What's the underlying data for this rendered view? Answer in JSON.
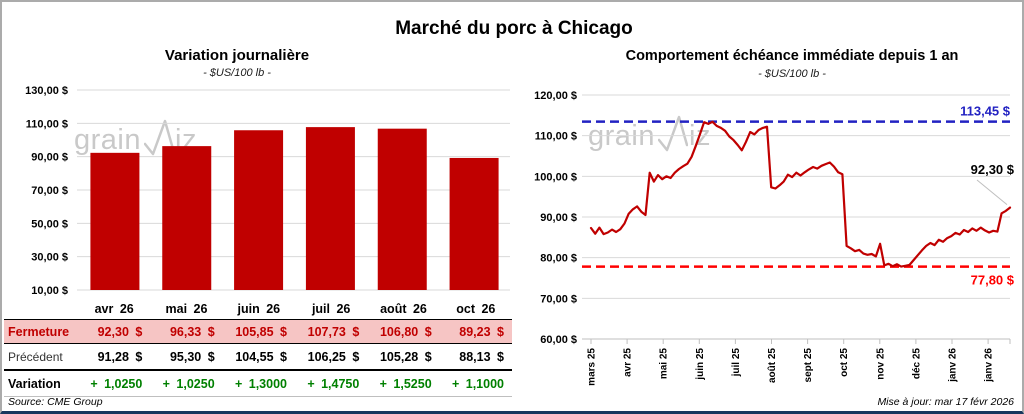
{
  "page": {
    "title": "Marché du porc à Chicago",
    "source": "Source: CME Group",
    "updated": "Mise à jour: mar 17 févr 2026",
    "watermark": {
      "pre": "grain",
      "post": "iz"
    }
  },
  "colors": {
    "series_red": "#C00000",
    "bright_red": "#FF0000",
    "blue": "#2222C2",
    "green": "#008000",
    "pink_row": "#F6C5C4",
    "grid": "#D9D9D9",
    "axis": "#BFBFBF",
    "watermark": "#C9C9C9",
    "border_navy": "#17375E",
    "border_gray": "#ABABAB"
  },
  "chart_data": [
    {
      "type": "bar",
      "title": "Variation journalière",
      "subtitle": "- $US/100 lb -",
      "categories": [
        "avr 26",
        "mai 26",
        "juin 26",
        "juil 26",
        "août 26",
        "oct 26"
      ],
      "values": [
        92.3,
        96.33,
        105.85,
        107.73,
        106.8,
        89.23
      ],
      "ylim": [
        10,
        130
      ],
      "yticks": [
        130,
        110,
        90,
        70,
        50,
        30,
        10
      ],
      "ytick_labels": [
        "130,00 $",
        "110,00 $",
        "90,00 $",
        "70,00 $",
        "50,00 $",
        "30,00 $",
        "10,00 $"
      ],
      "grid": true,
      "legend": "none",
      "bar_color": "#C00000"
    },
    {
      "type": "line",
      "title": "Comportement échéance immédiate depuis 1 an",
      "subtitle": "- $US/100 lb -",
      "x_tick_labels": [
        "mars 25",
        "avr 25",
        "mai 25",
        "juin 25",
        "juil 25",
        "août 25",
        "sept 25",
        "oct 25",
        "nov 25",
        "déc 25",
        "janv 26",
        "janv 26"
      ],
      "ylim": [
        60,
        120
      ],
      "yticks": [
        120,
        110,
        100,
        90,
        80,
        70,
        60
      ],
      "ytick_labels": [
        "120,00 $",
        "110,00 $",
        "100,00 $",
        "90,00 $",
        "80,00 $",
        "70,00 $",
        "60,00 $"
      ],
      "grid": true,
      "legend": "none",
      "line_color": "#C00000",
      "high_line": {
        "value": 113.45,
        "label": "113,45 $",
        "color": "#2222C2"
      },
      "low_line": {
        "value": 77.8,
        "label": "77,80 $",
        "color": "#FF0000"
      },
      "last_point_label": "92,30 $",
      "values": [
        87.3,
        85.9,
        87.4,
        85.8,
        86.2,
        86.9,
        86.3,
        87.0,
        88.4,
        90.8,
        91.9,
        92.6,
        91.3,
        90.5,
        100.9,
        98.7,
        100.3,
        99.3,
        100.0,
        99.6,
        100.9,
        101.8,
        102.5,
        103.1,
        104.8,
        107.5,
        110.3,
        113.3,
        112.9,
        113.4,
        112.4,
        111.9,
        111.2,
        109.8,
        108.9,
        107.7,
        106.4,
        108.5,
        110.9,
        110.3,
        111.4,
        111.9,
        112.2,
        97.3,
        97.0,
        97.8,
        98.7,
        100.4,
        99.8,
        100.9,
        100.2,
        101.0,
        101.7,
        102.3,
        101.9,
        102.6,
        103.0,
        103.4,
        102.4,
        101.0,
        100.5,
        82.9,
        82.3,
        81.6,
        81.9,
        81.0,
        80.7,
        80.9,
        80.3,
        83.4,
        78.1,
        78.5,
        77.9,
        78.4,
        77.8,
        78.0,
        78.2,
        79.4,
        80.6,
        81.8,
        82.9,
        83.6,
        83.1,
        84.4,
        83.9,
        84.8,
        85.3,
        86.1,
        85.7,
        86.8,
        86.3,
        87.2,
        86.6,
        87.4,
        86.7,
        86.2,
        86.6,
        86.4,
        90.9,
        91.5,
        92.3
      ]
    }
  ],
  "table": {
    "columns": [
      "avr 26",
      "mai 26",
      "juin 26",
      "juil 26",
      "août 26",
      "oct 26"
    ],
    "rows": [
      {
        "label": "Fermeture",
        "style": "close",
        "values": [
          "92,30 $",
          "96,33 $",
          "105,85 $",
          "107,73 $",
          "106,80 $",
          "89,23 $"
        ]
      },
      {
        "label": "Précédent",
        "style": "previous",
        "values": [
          "91,28 $",
          "95,30 $",
          "104,55 $",
          "106,25 $",
          "105,28 $",
          "88,13 $"
        ]
      },
      {
        "label": "Variation",
        "style": "variation",
        "values": [
          "+ 1,0250",
          "+ 1,0250",
          "+ 1,3000",
          "+ 1,4750",
          "+ 1,5250",
          "+ 1,1000"
        ]
      }
    ]
  }
}
